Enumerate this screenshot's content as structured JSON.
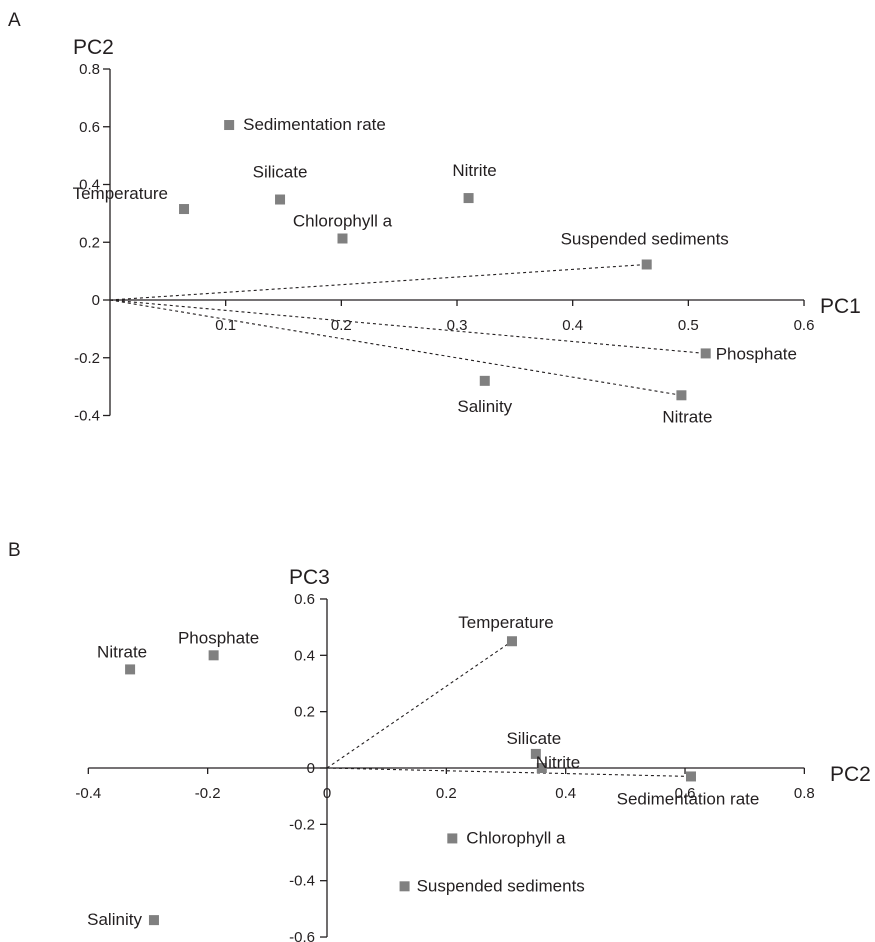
{
  "colors": {
    "marker": "#808080",
    "axis": "#231f20",
    "text": "#231f20"
  },
  "chart_data": [
    {
      "panel": "A",
      "type": "scatter",
      "xlabel": "PC1",
      "ylabel": "PC2",
      "xlim": [
        0,
        0.6
      ],
      "ylim": [
        -0.4,
        0.8
      ],
      "xticks": [
        "0.1",
        "0.2",
        "0.3",
        "0.4",
        "0.5",
        "0.6"
      ],
      "yticks": [
        "-0.4",
        "-0.2",
        "0",
        "0.2",
        "0.4",
        "0.6",
        "0.8"
      ],
      "points": [
        {
          "label": "Sedimentation rate",
          "x": 0.103,
          "y": 0.606
        },
        {
          "label": "Temperature",
          "x": 0.064,
          "y": 0.315
        },
        {
          "label": "Silicate",
          "x": 0.147,
          "y": 0.348
        },
        {
          "label": "Chlorophyll a",
          "x": 0.201,
          "y": 0.213
        },
        {
          "label": "Nitrite",
          "x": 0.31,
          "y": 0.353
        },
        {
          "label": "Suspended sediments",
          "x": 0.464,
          "y": 0.123
        },
        {
          "label": "Phosphate",
          "x": 0.515,
          "y": -0.185
        },
        {
          "label": "Salinity",
          "x": 0.324,
          "y": -0.28
        },
        {
          "label": "Nitrate",
          "x": 0.494,
          "y": -0.33
        }
      ],
      "vectors": [
        "Suspended sediments",
        "Phosphate",
        "Nitrate"
      ]
    },
    {
      "panel": "B",
      "type": "scatter",
      "xlabel": "PC2",
      "ylabel": "PC3",
      "xlim": [
        -0.4,
        0.8
      ],
      "ylim": [
        -0.6,
        0.6
      ],
      "xticks": [
        "-0.4",
        "-0.2",
        "0",
        "0.2",
        "0.4",
        "0.6",
        "0.8"
      ],
      "yticks": [
        "-0.6",
        "-0.4",
        "-0.2",
        "0",
        "0.2",
        "0.4",
        "0.6"
      ],
      "points": [
        {
          "label": "Nitrate",
          "x": -0.33,
          "y": 0.35
        },
        {
          "label": "Phosphate",
          "x": -0.19,
          "y": 0.4
        },
        {
          "label": "Temperature",
          "x": 0.31,
          "y": 0.45
        },
        {
          "label": "Silicate",
          "x": 0.35,
          "y": 0.05
        },
        {
          "label": "Nitrite",
          "x": 0.36,
          "y": 0.0
        },
        {
          "label": "Sedimentation rate",
          "x": 0.61,
          "y": -0.03
        },
        {
          "label": "Chlorophyll a",
          "x": 0.21,
          "y": -0.25
        },
        {
          "label": "Suspended sediments",
          "x": 0.13,
          "y": -0.42
        },
        {
          "label": "Salinity",
          "x": -0.29,
          "y": -0.54
        }
      ],
      "vectors": [
        "Temperature",
        "Sedimentation rate"
      ]
    }
  ]
}
